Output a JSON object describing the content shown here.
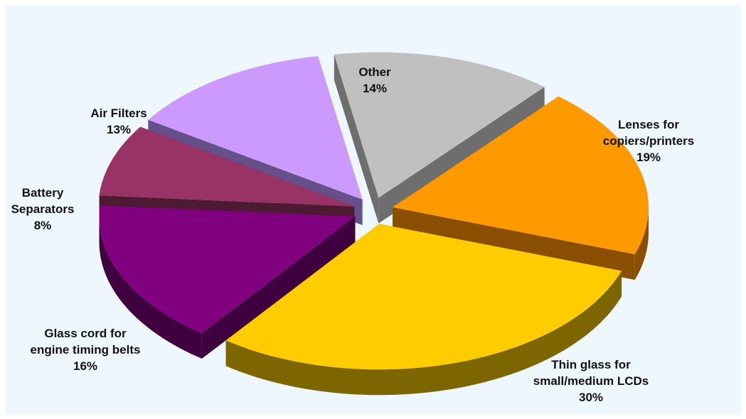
{
  "chart_data": {
    "type": "pie",
    "exploded": true,
    "three_d": true,
    "background": "#eef7fe",
    "slices": [
      {
        "label": [
          "Other"
        ],
        "value": 14,
        "value_label": "14%",
        "color": "#c0c0c0",
        "side_color": "#6e6e6e"
      },
      {
        "label": [
          "Lenses for",
          "copiers/printers"
        ],
        "value": 19,
        "value_label": "19%",
        "color": "#ff9900",
        "side_color": "#8a4f00"
      },
      {
        "label": [
          "Thin glass for",
          "small/medium LCDs"
        ],
        "value": 30,
        "value_label": "30%",
        "color": "#ffcc00",
        "side_color": "#7d6600"
      },
      {
        "label": [
          "Glass cord for",
          "engine timing belts"
        ],
        "value": 16,
        "value_label": "16%",
        "color": "#800080",
        "side_color": "#400040"
      },
      {
        "label": [
          "Battery",
          "Separators"
        ],
        "value": 8,
        "value_label": "8%",
        "color": "#993366",
        "side_color": "#4d1a33"
      },
      {
        "label": [
          "Air Filters"
        ],
        "value": 13,
        "value_label": "13%",
        "color": "#cc99ff",
        "side_color": "#66508a"
      }
    ]
  }
}
